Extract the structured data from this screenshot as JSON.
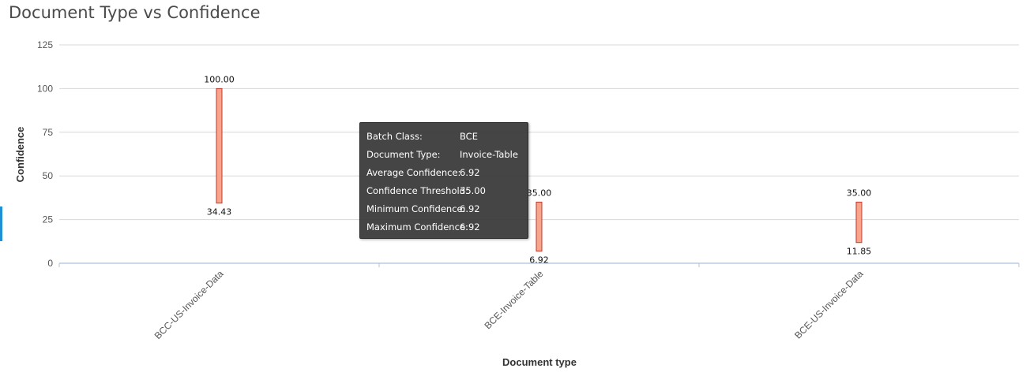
{
  "chart_data": {
    "type": "bar",
    "subtype": "floating-range",
    "title": "Document Type vs Confidence",
    "xlabel": "Document type",
    "ylabel": "Confidence",
    "ylim": [
      0,
      125
    ],
    "yticks": [
      0,
      25,
      50,
      75,
      100,
      125
    ],
    "grid": true,
    "categories": [
      "BCC-US-Invoice-Data",
      "BCE-Invoice-Table",
      "BCE-US-Invoice-Data"
    ],
    "ranges": [
      {
        "low": 34.43,
        "high": 100.0,
        "low_label": "34.43",
        "high_label": "100.00"
      },
      {
        "low": 6.92,
        "high": 35.0,
        "low_label": "6.92",
        "high_label": "35.00"
      },
      {
        "low": 11.85,
        "high": 35.0,
        "low_label": "11.85",
        "high_label": "35.00"
      }
    ],
    "bar_color": "#f9a48c",
    "bar_border_color": "#c0392b"
  },
  "tooltip": {
    "rows": [
      {
        "label": "Batch Class:",
        "value": "BCE"
      },
      {
        "label": "Document Type:",
        "value": "Invoice-Table"
      },
      {
        "label": "Average Confidence:",
        "value": "6.92"
      },
      {
        "label": "Confidence Threshold:",
        "value": "35.00"
      },
      {
        "label": "Minimum Confidence:",
        "value": "6.92"
      },
      {
        "label": "Maximum Confidence:",
        "value": "6.92"
      }
    ]
  }
}
